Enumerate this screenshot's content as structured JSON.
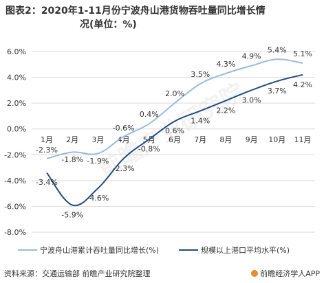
{
  "title": "图表2：2020年1-11月份宁波舟山港货物吞吐量同比增长情况(单位：%)",
  "title_line1": "图表2：2020年1-11月份宁波舟山港货物吞吐量同比增长情",
  "title_line2": "况(单位：%)",
  "footer": {
    "source": "资料来源：交通运输部 前瞻产业研究院整理",
    "brand": "前瞻经济学人APP"
  },
  "watermark": "前瞻产业研究院",
  "colors": {
    "series1": "#9ab9e0",
    "series2": "#254b80",
    "grid": "#d9d9d9"
  },
  "chart_data": {
    "type": "line",
    "categories": [
      "1月",
      "2月",
      "3月",
      "4月",
      "5月",
      "6月",
      "7月",
      "8月",
      "9月",
      "10月",
      "11月"
    ],
    "ylim": [
      -8,
      6
    ],
    "yticks": [
      -8,
      -6,
      -4,
      -2,
      0,
      2,
      4,
      6
    ],
    "ytick_labels": [
      "-8.0%",
      "-6.0%",
      "-4.0%",
      "-2.0%",
      "0.0%",
      "2.0%",
      "4.0%",
      "6.0%"
    ],
    "grid": true,
    "legend_position": "bottom",
    "series": [
      {
        "name": "宁波舟山港累计吞吐量同比增长(%)",
        "values": [
          -2.3,
          -1.8,
          -1.9,
          -0.6,
          0.4,
          2.0,
          3.5,
          4.3,
          4.9,
          5.4,
          5.1
        ],
        "labels": [
          "-2.3%",
          "-1.8%",
          "-1.9%",
          "-0.6%",
          "0.4%",
          "2.0%",
          "3.5%",
          "4.3%",
          "4.9%",
          "5.4%",
          "5.1%"
        ]
      },
      {
        "name": "规模以上港口平均水平(%)",
        "values": [
          -3.4,
          -5.9,
          -4.6,
          -2.3,
          -0.8,
          0.6,
          1.4,
          2.2,
          3.0,
          3.7,
          4.2
        ],
        "labels": [
          "-3.4%",
          "-5.9%",
          "-4.6%",
          "-2.3%",
          "-0.8%",
          "0.6%",
          "1.4%",
          "2.2%",
          "3.0%",
          "3.7%",
          "4.2%"
        ]
      }
    ]
  }
}
